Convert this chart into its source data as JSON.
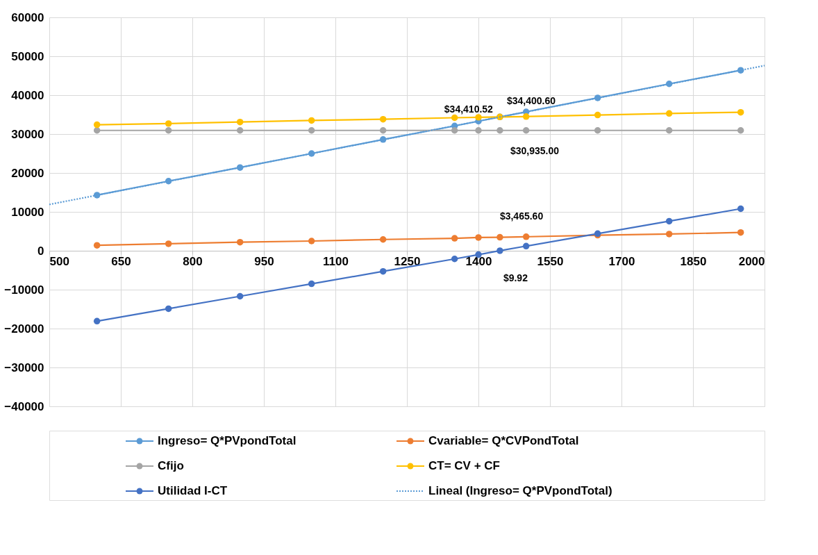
{
  "chart_data": {
    "type": "line",
    "xlim": [
      500,
      2000
    ],
    "xticks": [
      500,
      650,
      800,
      950,
      1100,
      1250,
      1400,
      1550,
      1700,
      1850,
      2000
    ],
    "ylim": [
      -40000,
      60000
    ],
    "yticks": [
      -40000,
      -30000,
      -20000,
      -10000,
      0,
      10000,
      20000,
      30000,
      40000,
      50000,
      60000
    ],
    "grid": true,
    "legend": "bottom",
    "marker": "circle",
    "line_style": "solid",
    "series": [
      {
        "name": "Ingreso= Q*PVpondTotal",
        "color": "#5b9bd5",
        "x": [
          600,
          750,
          900,
          1050,
          1200,
          1350,
          1400,
          1445,
          1500,
          1650,
          1800,
          1950
        ],
        "values": [
          14300,
          17900,
          21400,
          25000,
          28600,
          32100,
          33300,
          34400.6,
          35700,
          39300,
          42900,
          46400
        ],
        "value_labels": [
          null,
          null,
          null,
          null,
          null,
          null,
          null,
          "$34,400.60",
          null,
          null,
          null,
          null
        ]
      },
      {
        "name": "Cvariable= Q*CVPondTotal",
        "color": "#ed7d31",
        "x": [
          600,
          750,
          900,
          1050,
          1200,
          1350,
          1400,
          1445,
          1500,
          1650,
          1800,
          1950
        ],
        "values": [
          1400,
          1800,
          2200,
          2500,
          2900,
          3200,
          3400,
          3465.6,
          3600,
          4000,
          4300,
          4700
        ],
        "value_labels": [
          null,
          null,
          null,
          null,
          null,
          null,
          null,
          "$3,465.60",
          null,
          null,
          null,
          null
        ]
      },
      {
        "name": "Cfijo",
        "color": "#a5a5a5",
        "x": [
          600,
          750,
          900,
          1050,
          1200,
          1350,
          1400,
          1445,
          1500,
          1650,
          1800,
          1950
        ],
        "values": [
          30935,
          30935,
          30935,
          30935,
          30935,
          30935,
          30935,
          30935,
          30935,
          30935,
          30935,
          30935
        ],
        "value_labels": [
          null,
          null,
          null,
          null,
          null,
          null,
          null,
          "$30,935.00",
          null,
          null,
          null,
          null
        ]
      },
      {
        "name": "CT= CV + CF",
        "color": "#ffc000",
        "x": [
          600,
          750,
          900,
          1050,
          1200,
          1350,
          1400,
          1445,
          1500,
          1650,
          1800,
          1950
        ],
        "values": [
          32400,
          32700,
          33100,
          33500,
          33800,
          34200,
          34300,
          34410.52,
          34500,
          34900,
          35300,
          35600
        ],
        "value_labels": [
          null,
          null,
          null,
          null,
          null,
          null,
          null,
          "$34,410.52",
          null,
          null,
          null,
          null
        ]
      },
      {
        "name": "Utilidad  I-CT",
        "color": "#4472c4",
        "x": [
          600,
          750,
          900,
          1050,
          1200,
          1350,
          1400,
          1445,
          1500,
          1650,
          1800,
          1950
        ],
        "values": [
          -18100,
          -14900,
          -11700,
          -8500,
          -5300,
          -2100,
          -1000,
          9.92,
          1200,
          4400,
          7600,
          10800
        ],
        "value_labels": [
          null,
          null,
          null,
          null,
          null,
          null,
          null,
          "$9.92",
          null,
          null,
          null,
          null
        ]
      },
      {
        "name": "Lineal (Ingreso= Q*PVpondTotal)",
        "color": "#5b9bd5",
        "x": [
          500,
          2000
        ],
        "values": [
          11900,
          47600
        ],
        "marker": "none",
        "line_style": "dotted"
      }
    ]
  }
}
